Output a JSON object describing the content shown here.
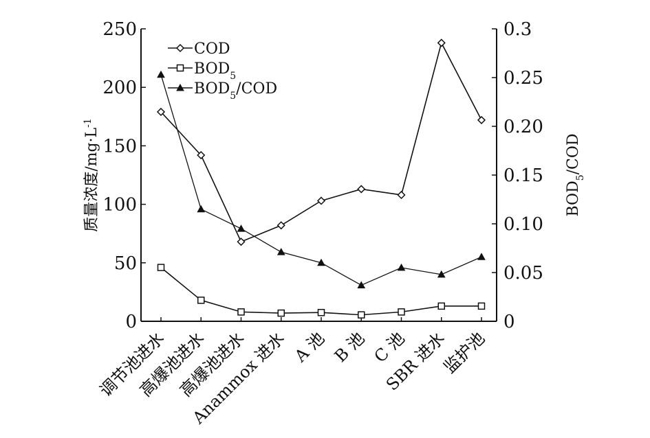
{
  "chart_data": {
    "type": "line",
    "categories": [
      "调节池进水",
      "高爆池进水",
      "高爆池进水",
      "Anammox 进水",
      "A 池",
      "B 池",
      "C 池",
      "SBR 进水",
      "监护池"
    ],
    "series": [
      {
        "name": "COD",
        "axis": "left",
        "marker": "diamond",
        "values": [
          179,
          142,
          68,
          82,
          103,
          113,
          108,
          238,
          172
        ]
      },
      {
        "name": "BOD5",
        "axis": "left",
        "marker": "square",
        "values": [
          46,
          18,
          8,
          7,
          7.5,
          5.5,
          8,
          13,
          13
        ]
      },
      {
        "name": "BOD5/COD",
        "axis": "right",
        "marker": "triangle",
        "values": [
          0.253,
          0.115,
          0.095,
          0.071,
          0.06,
          0.037,
          0.055,
          0.048,
          0.066
        ]
      }
    ],
    "legend_labels": [
      "COD",
      "BOD",
      "BOD",
      "/COD"
    ],
    "legend_subscript": "5",
    "ylabel_left": "质量浓度/mg·L",
    "ylabel_left_sup": "-1",
    "ylabel_right": "BOD",
    "ylabel_right_sub": "5",
    "ylabel_right_tail": "/COD",
    "ylim_left": [
      0,
      250
    ],
    "ylim_right": [
      0,
      0.3
    ],
    "yticks_left": [
      "0",
      "50",
      "100",
      "150",
      "200",
      "250"
    ],
    "yticks_right": [
      "0",
      "0.05",
      "0.10",
      "0.15",
      "0.20",
      "0.25",
      "0.3"
    ],
    "yticks_right_values": [
      0,
      0.05,
      0.1,
      0.15,
      0.2,
      0.25,
      0.3
    ],
    "yticks_left_values": [
      0,
      50,
      100,
      150,
      200,
      250
    ],
    "grid": false,
    "legend_position": "top-left"
  }
}
